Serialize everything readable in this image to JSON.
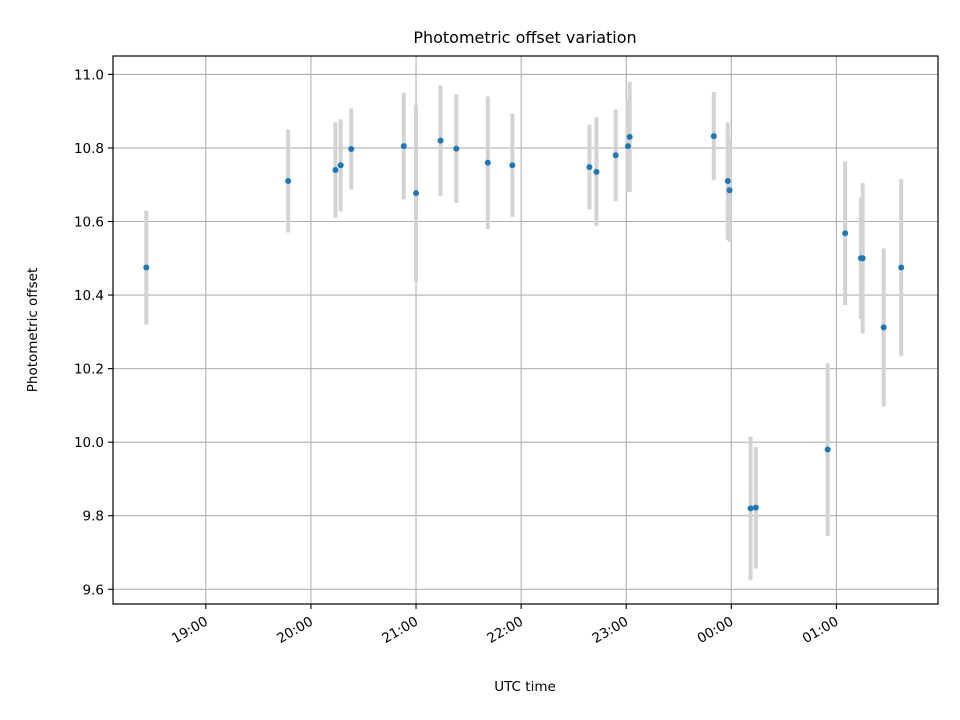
{
  "chart_data": {
    "type": "scatter",
    "title": "Photometric offset variation",
    "xlabel": "UTC time",
    "ylabel": "Photometric offset",
    "x_axis": "time",
    "x_ticks": [
      "19:00",
      "20:00",
      "21:00",
      "22:00",
      "23:00",
      "00:00",
      "01:00"
    ],
    "y_ticks": [
      "9.6",
      "9.8",
      "10.0",
      "10.2",
      "10.4",
      "10.6",
      "10.8",
      "11.0"
    ],
    "xlim": [
      "18:07",
      "01:58"
    ],
    "ylim": [
      9.56,
      11.05
    ],
    "grid": true,
    "legend": "none",
    "series": [
      {
        "marker_color": "#1f77b4",
        "errorbar_color": "#d3d3d3",
        "points": [
          {
            "x": "18:26",
            "y": 10.475,
            "err": 0.155
          },
          {
            "x": "19:47",
            "y": 10.71,
            "err": 0.14
          },
          {
            "x": "20:14",
            "y": 10.74,
            "err": 0.13
          },
          {
            "x": "20:17",
            "y": 10.753,
            "err": 0.125
          },
          {
            "x": "20:23",
            "y": 10.797,
            "err": 0.11
          },
          {
            "x": "20:53",
            "y": 10.805,
            "err": 0.145
          },
          {
            "x": "21:00",
            "y": 10.677,
            "err": 0.24
          },
          {
            "x": "21:14",
            "y": 10.82,
            "err": 0.15
          },
          {
            "x": "21:23",
            "y": 10.798,
            "err": 0.148
          },
          {
            "x": "21:41",
            "y": 10.76,
            "err": 0.18
          },
          {
            "x": "21:55",
            "y": 10.753,
            "err": 0.14
          },
          {
            "x": "22:39",
            "y": 10.748,
            "err": 0.115
          },
          {
            "x": "22:43",
            "y": 10.735,
            "err": 0.148
          },
          {
            "x": "22:54",
            "y": 10.78,
            "err": 0.125
          },
          {
            "x": "23:01",
            "y": 10.805,
            "err": 0.125
          },
          {
            "x": "23:02",
            "y": 10.83,
            "err": 0.15
          },
          {
            "x": "23:50",
            "y": 10.832,
            "err": 0.12
          },
          {
            "x": "23:58",
            "y": 10.71,
            "err": 0.16
          },
          {
            "x": "23:59",
            "y": 10.685,
            "err": 0.14
          },
          {
            "x": "00:11",
            "y": 9.82,
            "err": 0.195
          },
          {
            "x": "00:14",
            "y": 9.822,
            "err": 0.165
          },
          {
            "x": "00:55",
            "y": 9.98,
            "err": 0.235
          },
          {
            "x": "01:05",
            "y": 10.568,
            "err": 0.195
          },
          {
            "x": "01:14",
            "y": 10.5,
            "err": 0.165
          },
          {
            "x": "01:15",
            "y": 10.5,
            "err": 0.205
          },
          {
            "x": "01:27",
            "y": 10.312,
            "err": 0.215
          },
          {
            "x": "01:37",
            "y": 10.475,
            "err": 0.24
          }
        ]
      }
    ]
  }
}
